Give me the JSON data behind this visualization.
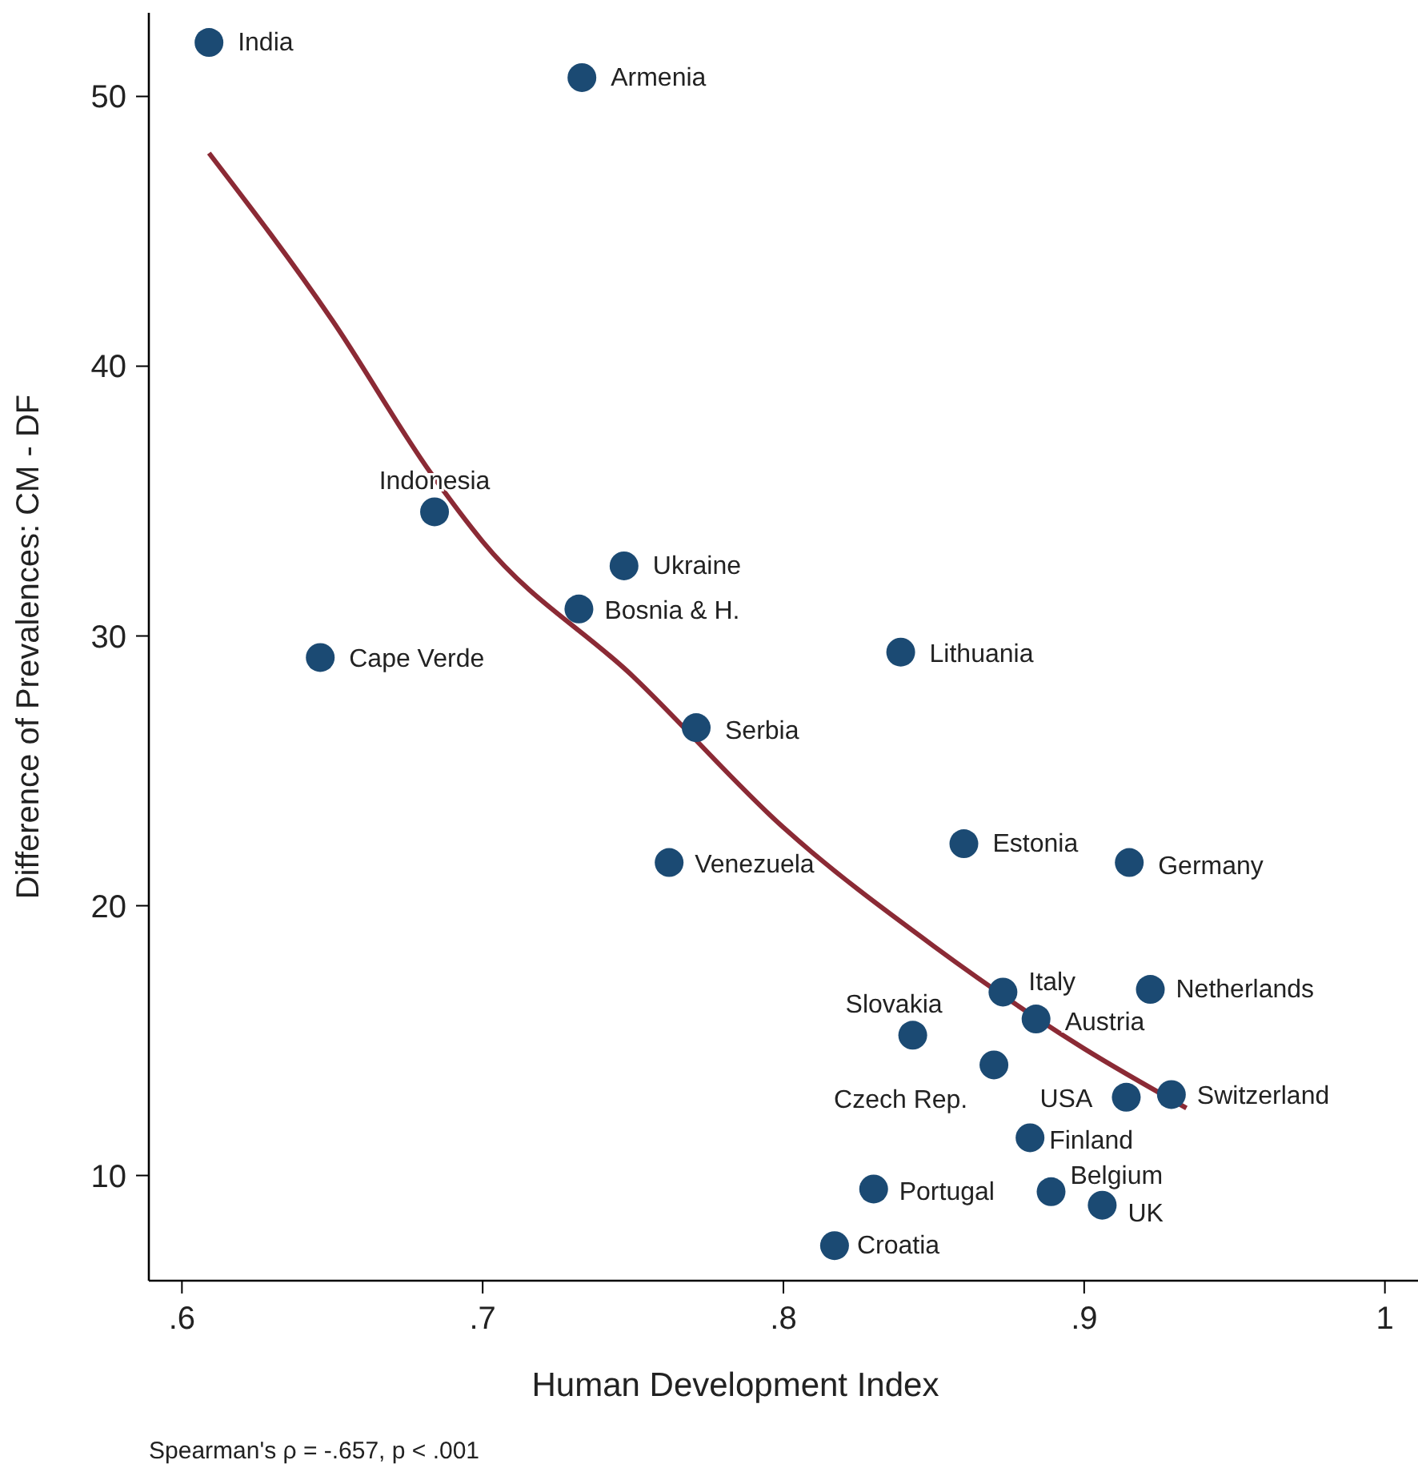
{
  "chart_data": {
    "type": "scatter",
    "xlabel": "Human Development Index",
    "ylabel": "Difference of Prevalences: CM - DF",
    "annotations": [
      "Spearman's ρ = -.657, p < .001"
    ],
    "xlim": [
      0.589,
      1.011
    ],
    "ylim": [
      6.1,
      53.1
    ],
    "xticks": [
      {
        "value": 0.6,
        "label": ".6"
      },
      {
        "value": 0.7,
        "label": ".7"
      },
      {
        "value": 0.8,
        "label": ".8"
      },
      {
        "value": 0.9,
        "label": ".9"
      },
      1
    ],
    "yticks": [
      10,
      20,
      30,
      40,
      50
    ],
    "grid": false,
    "series": [
      {
        "color": "#1b4a73",
        "marker": "circle",
        "x": [
          0.609,
          0.733,
          0.684,
          0.747,
          0.732,
          0.646,
          0.839,
          0.771,
          0.86,
          0.762,
          0.915,
          0.873,
          0.922,
          0.884,
          0.843,
          0.87,
          0.914,
          0.929,
          0.882,
          0.83,
          0.889,
          0.906,
          0.817
        ],
        "values": [
          52.0,
          50.7,
          34.6,
          32.6,
          31.0,
          29.2,
          29.4,
          26.6,
          22.3,
          21.6,
          21.6,
          16.8,
          16.9,
          15.8,
          15.2,
          14.1,
          12.9,
          13.0,
          11.4,
          9.5,
          9.4,
          8.9,
          7.4
        ],
        "value_labels": [
          "India",
          "Armenia",
          "Indonesia",
          "Ukraine",
          "Bosnia & H.",
          "Cape Verde",
          "Lithuania",
          "Serbia",
          "Estonia",
          "Venezuela",
          "Germany",
          "Italy",
          "Netherlands",
          "Austria",
          "Slovakia",
          "Czech Rep.",
          "USA",
          "Switzerland",
          "Finland",
          "Portugal",
          "Belgium",
          "UK",
          "Croatia"
        ]
      },
      {
        "type": "line",
        "color": "#8b2a35",
        "line_style": "solid",
        "marker": "none",
        "x": [
          0.609,
          0.65,
          0.683,
          0.7,
          0.75,
          0.8,
          0.85,
          0.9,
          0.934
        ],
        "values": [
          47.9,
          41.7,
          36.0,
          33.5,
          28.5,
          22.9,
          18.5,
          14.7,
          12.5
        ]
      }
    ]
  }
}
